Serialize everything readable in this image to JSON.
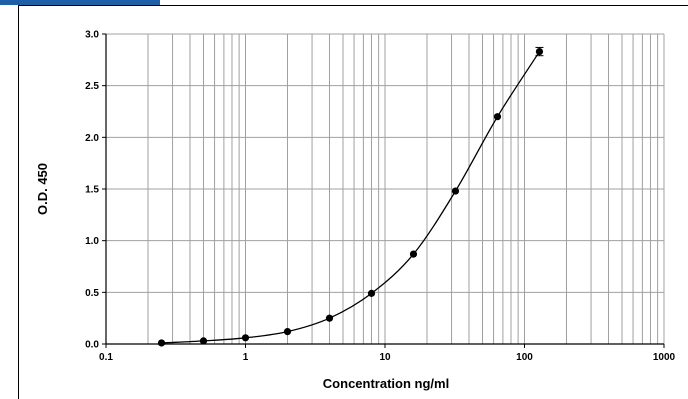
{
  "colors": {
    "accent": "#1f5fa8",
    "grid": "#a0a0a0",
    "axis": "#000000"
  },
  "chart_data": {
    "type": "scatter",
    "title": "",
    "xlabel": "Concentration ng/ml",
    "ylabel": "O.D. 450",
    "x_scale": "log",
    "xlim": [
      0.1,
      1000
    ],
    "ylim": [
      0,
      3.0
    ],
    "x_ticks": [
      "0.1",
      "1",
      "10",
      "100",
      "1000"
    ],
    "y_ticks": [
      "0.0",
      "0.5",
      "1.0",
      "1.5",
      "2.0",
      "2.5",
      "3.0"
    ],
    "grid": true,
    "legend": "none",
    "fit_line": true,
    "series": [
      {
        "x": [
          0.25,
          0.5,
          1,
          2,
          4,
          8,
          16,
          32,
          64,
          128
        ],
        "y": [
          0.01,
          0.03,
          0.06,
          0.12,
          0.25,
          0.49,
          0.87,
          1.48,
          2.2,
          2.83
        ],
        "error": [
          0,
          0,
          0,
          0,
          0,
          0,
          0,
          0,
          0,
          0.04
        ]
      }
    ]
  }
}
